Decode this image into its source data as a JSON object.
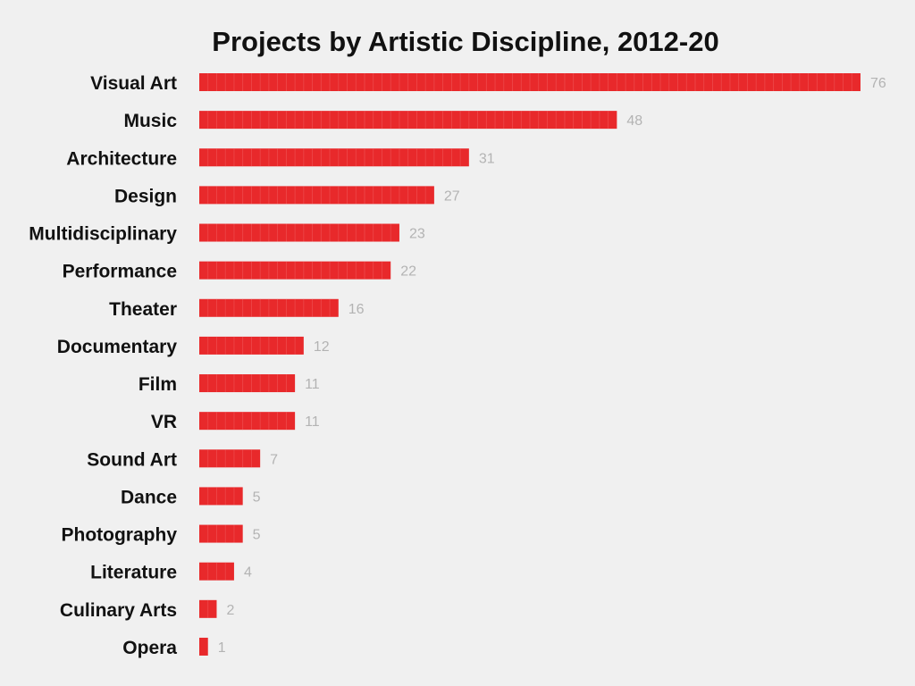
{
  "chart_data": {
    "type": "bar",
    "orientation": "horizontal",
    "title": "Projects by Artistic Discipline, 2012-20",
    "xlabel": "",
    "ylabel": "",
    "categories": [
      "Visual Art",
      "Music",
      "Architecture",
      "Design",
      "Multidisciplinary",
      "Performance",
      "Theater",
      "Documentary",
      "Film",
      "VR",
      "Sound Art",
      "Dance",
      "Photography",
      "Literature",
      "Culinary Arts",
      "Opera"
    ],
    "values": [
      76,
      48,
      31,
      27,
      23,
      22,
      16,
      12,
      11,
      11,
      7,
      5,
      5,
      4,
      2,
      1
    ],
    "xlim": [
      0,
      76
    ],
    "grid": false,
    "legend": "none",
    "data_labels": true,
    "colors": {
      "bar": "#e8292b",
      "bar_segment_line": "#f06466",
      "value_label": "#b3b3b3",
      "category_label": "#111111",
      "title": "#111111",
      "background": "#f0f0f0"
    }
  }
}
